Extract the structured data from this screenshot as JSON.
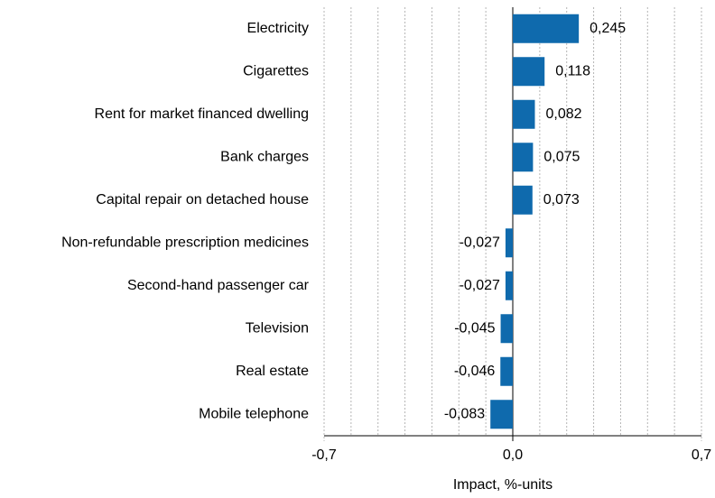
{
  "chart_data": {
    "type": "barh",
    "categories": [
      "Electricity",
      "Cigarettes",
      "Rent for market financed dwelling",
      "Bank charges",
      "Capital repair on detached house",
      "Non-refundable prescription medicines",
      "Second-hand passenger car",
      "Television",
      "Real estate",
      "Mobile telephone"
    ],
    "values": [
      0.245,
      0.118,
      0.082,
      0.075,
      0.073,
      -0.027,
      -0.027,
      -0.045,
      -0.046,
      -0.083
    ],
    "value_labels": [
      "0,245",
      "0,118",
      "0,082",
      "0,075",
      "0,073",
      "-0,027",
      "-0,027",
      "-0,045",
      "-0,046",
      "-0,083"
    ],
    "color": "#0f6aad",
    "xlabel": "Impact, %-units",
    "xlim": [
      -0.7,
      0.7
    ],
    "xticks": [
      {
        "value": -0.7,
        "label": "-0,7"
      },
      {
        "value": 0,
        "label": "0,0"
      },
      {
        "value": 0.7,
        "label": "0,7"
      }
    ],
    "xminor_ticks": [
      -0.6,
      -0.5,
      -0.4,
      -0.3,
      -0.2,
      -0.1,
      0.1,
      0.2,
      0.3,
      0.4,
      0.5,
      0.6
    ],
    "grid": true
  }
}
